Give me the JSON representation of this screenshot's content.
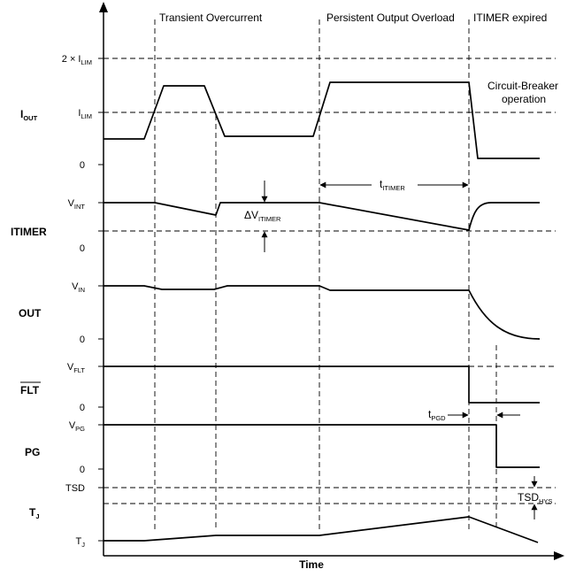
{
  "phases": {
    "transient": "Transient Overcurrent",
    "persistent": "Persistent Output Overload",
    "expired": "ITIMER expired"
  },
  "annotations": {
    "circuit_breaker_line1": "Circuit-Breaker",
    "circuit_breaker_line2": "operation",
    "delta_v_main": "ΔV",
    "delta_v_sub": "ITIMER",
    "t_itimer_main": "t",
    "t_itimer_sub": "ITIMER",
    "t_pgd_main": "t",
    "t_pgd_sub": "PGD",
    "tsd_hys_main": "TSD",
    "tsd_hys_sub": "HYS"
  },
  "axis": {
    "x_title": "Time"
  },
  "signals": {
    "iout": {
      "main": "I",
      "sub": "OUT"
    },
    "itimer": {
      "label": "ITIMER"
    },
    "out": {
      "label": "OUT"
    },
    "flt": {
      "label": "FLT",
      "overbar": true
    },
    "pg": {
      "label": "PG"
    },
    "tj": {
      "main": "T",
      "sub": "J"
    }
  },
  "levels": {
    "two_ilim_prefix": "2 × I",
    "two_ilim_sub": "LIM",
    "ilim_main": "I",
    "ilim_sub": "LIM",
    "iout_zero": "0",
    "vint_main": "V",
    "vint_sub": "INT",
    "itimer_zero": "0",
    "vin_main": "V",
    "vin_sub": "IN",
    "out_zero": "0",
    "vflt_main": "V",
    "vflt_sub": "FLT",
    "flt_zero": "0",
    "vpg_main": "V",
    "vpg_sub": "PG",
    "pg_zero": "0",
    "tsd": "TSD",
    "tj_main": "T",
    "tj_sub": "J"
  }
}
